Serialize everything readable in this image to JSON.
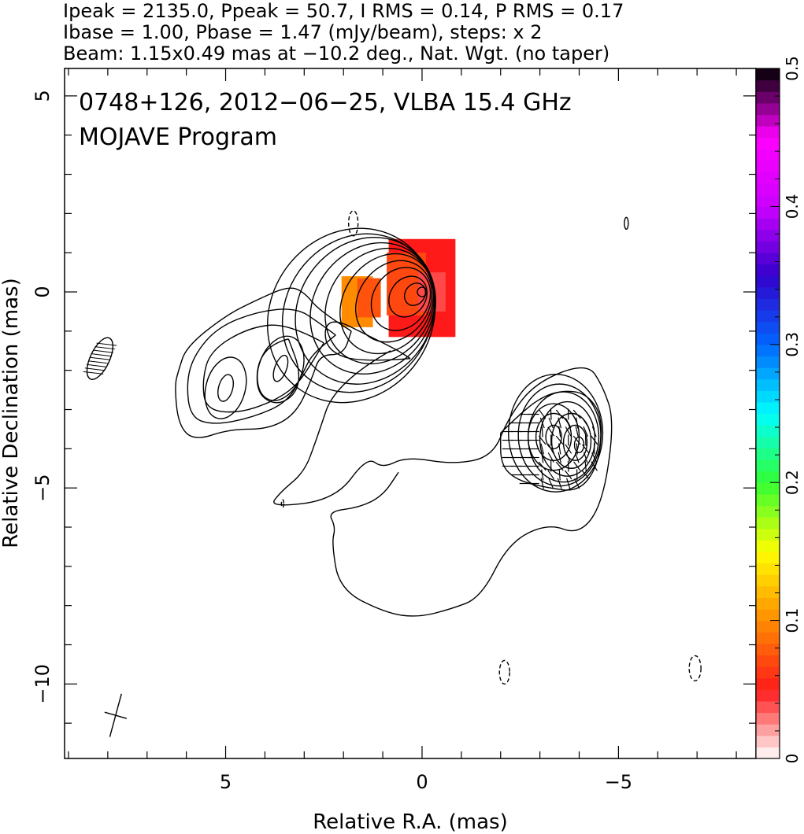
{
  "header": {
    "line1": "Ipeak = 2135.0, Ppeak = 50.7, I RMS = 0.14, P RMS = 0.17",
    "line2": "Ibase = 1.00, Pbase = 1.47 (mJy/beam), steps: x 2",
    "line3": "Beam: 1.15x0.49 mas at −10.2 deg., Nat. Wgt. (no taper)"
  },
  "chart_data": {
    "type": "heatmap",
    "title": "0748+126, 2012−06−25, VLBA 15.4 GHz",
    "subtitle": "MOJAVE Program",
    "xlabel": "Relative R.A. (mas)",
    "ylabel": "Relative Declination (mas)",
    "xlim": [
      9.1,
      -8.5
    ],
    "ylim": [
      -11.9,
      5.7
    ],
    "x_ticks": [
      5,
      0,
      -5
    ],
    "x_tick_labels": [
      "5",
      "0",
      "−5"
    ],
    "y_ticks": [
      5,
      0,
      -5,
      -10
    ],
    "y_tick_labels": [
      "5",
      "0",
      "−5",
      "−10"
    ],
    "colorbar": {
      "range": [
        0,
        0.5
      ],
      "ticks": [
        0,
        0.1,
        0.2,
        0.3,
        0.4,
        0.5
      ],
      "tick_labels": [
        "0",
        "0.1",
        "0.2",
        "0.3",
        "0.4",
        "0.5"
      ],
      "colors": [
        "#ffffff",
        "#ff1a1a",
        "#ff8c00",
        "#ffff00",
        "#33ff33",
        "#00ffff",
        "#0066ff",
        "#3300cc",
        "#cc00ff",
        "#ff00ff",
        "#000000"
      ]
    },
    "polarization_color_patches": [
      {
        "ra": 0.0,
        "dec": 0.1,
        "ra_halfwidth": 0.85,
        "dec_halfwidth": 1.25,
        "value": 0.05
      },
      {
        "ra": 0.4,
        "dec": 0.2,
        "ra_halfwidth": 0.5,
        "dec_halfwidth": 0.8,
        "value": 0.07
      },
      {
        "ra": -0.25,
        "dec": 0.0,
        "ra_halfwidth": 0.35,
        "dec_halfwidth": 0.5,
        "value": 0.04
      },
      {
        "ra": 1.65,
        "dec": -0.25,
        "ra_halfwidth": 0.4,
        "dec_halfwidth": 0.65,
        "value": 0.1
      },
      {
        "ra": 1.35,
        "dec": -0.15,
        "ra_halfwidth": 0.3,
        "dec_halfwidth": 0.5,
        "value": 0.075
      }
    ],
    "contour_sets": [
      {
        "name": "core",
        "center": [
          0.0,
          0.0
        ],
        "rx": [
          0.12,
          0.25,
          0.45,
          0.7,
          0.9,
          1.1,
          1.3,
          1.5,
          1.7,
          1.85,
          2.05
        ],
        "ry": [
          0.12,
          0.3,
          0.55,
          0.85,
          1.1,
          1.35,
          1.55,
          1.75,
          1.95,
          2.1,
          2.3
        ],
        "rotation_deg": 35,
        "center_shift_per_level": [
          0.18,
          -0.06
        ]
      },
      {
        "name": "knot-west",
        "center": [
          -4.0,
          -3.9
        ],
        "rx": [
          0.12,
          0.3,
          0.5,
          0.7,
          0.9,
          1.05,
          1.2
        ],
        "ry": [
          0.2,
          0.45,
          0.7,
          0.95,
          1.15,
          1.3,
          1.5
        ],
        "rotation_deg": 0,
        "center_shift_per_level": [
          0.1,
          0.05
        ]
      },
      {
        "name": "knot-west-2",
        "center": [
          -3.35,
          -3.7
        ],
        "rx": [
          0.2,
          0.45,
          0.65
        ],
        "ry": [
          0.3,
          0.6,
          0.85
        ],
        "rotation_deg": 0,
        "center_shift_per_level": [
          0.0,
          0.0
        ]
      },
      {
        "name": "knot-east",
        "center": [
          5.0,
          -2.45
        ],
        "rx": [
          0.18,
          0.5
        ],
        "ry": [
          0.35,
          0.8
        ],
        "rotation_deg": 15,
        "center_shift_per_level": [
          0.0,
          0.0
        ]
      },
      {
        "name": "knot-east-2",
        "center": [
          3.6,
          -1.95
        ],
        "rx": [
          0.15,
          0.55
        ],
        "ry": [
          0.35,
          0.85
        ],
        "rotation_deg": 20,
        "center_shift_per_level": [
          0.0,
          0.0
        ]
      }
    ],
    "contour_polylines": [
      {
        "dashed": false,
        "points": [
          [
            1.8,
            -1.0
          ],
          [
            2.6,
            -0.5
          ],
          [
            3.0,
            0.0
          ],
          [
            3.4,
            0.15
          ],
          [
            4.2,
            -0.2
          ],
          [
            5.0,
            -0.6
          ],
          [
            6.0,
            -1.4
          ],
          [
            6.2,
            -2.0
          ],
          [
            6.3,
            -2.4
          ],
          [
            6.2,
            -3.4
          ],
          [
            5.8,
            -3.8
          ],
          [
            4.9,
            -3.5
          ],
          [
            3.9,
            -3.5
          ],
          [
            3.2,
            -3.1
          ],
          [
            2.8,
            -2.2
          ],
          [
            2.6,
            -1.6
          ],
          [
            2.0,
            -1.6
          ],
          [
            1.8,
            -1.0
          ]
        ]
      },
      {
        "dashed": false,
        "points": [
          [
            2.2,
            -1.1
          ],
          [
            2.6,
            -0.8
          ],
          [
            3.2,
            -0.4
          ],
          [
            4.2,
            -0.5
          ],
          [
            5.2,
            -0.9
          ],
          [
            5.8,
            -1.6
          ],
          [
            6.0,
            -2.3
          ],
          [
            5.9,
            -3.2
          ],
          [
            5.3,
            -3.4
          ],
          [
            4.3,
            -3.2
          ],
          [
            3.4,
            -2.8
          ],
          [
            3.0,
            -2.0
          ],
          [
            2.8,
            -1.6
          ],
          [
            2.2,
            -1.1
          ]
        ]
      },
      {
        "dashed": false,
        "points": [
          [
            2.5,
            -1.3
          ],
          [
            3.4,
            -0.8
          ],
          [
            4.4,
            -0.9
          ],
          [
            5.4,
            -1.5
          ],
          [
            5.6,
            -2.3
          ],
          [
            5.5,
            -3.0
          ],
          [
            4.7,
            -3.1
          ],
          [
            3.8,
            -2.8
          ],
          [
            3.2,
            -2.4
          ],
          [
            2.8,
            -1.8
          ],
          [
            2.5,
            -1.3
          ]
        ]
      },
      {
        "dashed": false,
        "points": [
          [
            3.4,
            -1.2
          ],
          [
            3.8,
            -1.3
          ],
          [
            4.2,
            -1.8
          ],
          [
            4.2,
            -2.6
          ],
          [
            3.7,
            -2.9
          ],
          [
            3.2,
            -2.6
          ],
          [
            3.1,
            -2.0
          ],
          [
            3.4,
            -1.2
          ]
        ]
      },
      {
        "dashed": false,
        "points": [
          [
            0.8,
            -1.5
          ],
          [
            2.2,
            -2.3
          ],
          [
            2.7,
            -3.8
          ],
          [
            3.0,
            -4.6
          ],
          [
            3.6,
            -5.1
          ],
          [
            3.9,
            -5.5
          ],
          [
            2.2,
            -5.3
          ],
          [
            1.4,
            -4.2
          ],
          [
            1.0,
            -4.5
          ],
          [
            0.4,
            -4.2
          ],
          [
            -0.8,
            -4.4
          ],
          [
            -1.8,
            -4.2
          ],
          [
            -2.2,
            -3.2
          ],
          [
            -2.9,
            -2.3
          ],
          [
            -4.2,
            -1.8
          ],
          [
            -4.6,
            -2.4
          ],
          [
            -4.9,
            -3.3
          ],
          [
            -4.6,
            -5.4
          ],
          [
            -4.0,
            -6.2
          ],
          [
            -3.2,
            -5.9
          ],
          [
            -2.2,
            -6.4
          ],
          [
            -1.5,
            -7.8
          ],
          [
            -0.7,
            -8.1
          ],
          [
            0.1,
            -8.3
          ],
          [
            0.9,
            -8.2
          ],
          [
            2.1,
            -7.6
          ],
          [
            2.3,
            -6.4
          ],
          [
            2.2,
            -6.0
          ],
          [
            2.4,
            -5.6
          ],
          [
            1.6,
            -5.5
          ],
          [
            1.0,
            -5.2
          ],
          [
            0.6,
            -4.6
          ]
        ]
      },
      {
        "dashed": false,
        "points": [
          [
            -2.0,
            -3.6
          ],
          [
            -2.4,
            -3.2
          ],
          [
            -3.0,
            -2.7
          ],
          [
            -3.6,
            -2.5
          ],
          [
            -4.2,
            -2.6
          ],
          [
            -4.6,
            -3.2
          ],
          [
            -4.5,
            -4.4
          ],
          [
            -4.0,
            -5.1
          ],
          [
            -3.2,
            -5.0
          ],
          [
            -2.4,
            -4.8
          ],
          [
            -2.0,
            -4.4
          ],
          [
            -2.0,
            -3.6
          ]
        ]
      },
      {
        "dashed": false,
        "points": [
          [
            0.3,
            -1.7
          ],
          [
            1.6,
            -1.8
          ],
          [
            2.4,
            -1.5
          ],
          [
            2.5,
            -0.9
          ],
          [
            2.2,
            -0.7
          ],
          [
            1.4,
            -1.1
          ],
          [
            0.6,
            -1.5
          ],
          [
            0.3,
            -1.7
          ]
        ]
      }
    ],
    "dashed_contours": [
      {
        "ra": 1.75,
        "dec": 1.75,
        "rx": 0.12,
        "ry": 0.32
      },
      {
        "ra": -2.1,
        "dec": -9.7,
        "rx": 0.13,
        "ry": 0.3
      },
      {
        "ra": -6.95,
        "dec": -9.6,
        "rx": 0.15,
        "ry": 0.32
      },
      {
        "ra": 3.55,
        "dec": -5.4,
        "rx": 0.03,
        "ry": 0.1
      }
    ],
    "solid_small_contours": [
      {
        "ra": -5.2,
        "dec": 1.75,
        "rx": 0.05,
        "ry": 0.15
      }
    ],
    "evpa_sticks_region": {
      "ra_range": [
        -2.1,
        -4.4
      ],
      "dec_range": [
        -3.0,
        -5.0
      ]
    },
    "beam": {
      "ra": 8.2,
      "dec": -1.7,
      "major_mas": 1.15,
      "minor_mas": 0.49,
      "pa_deg": -10.2
    },
    "polarization_scale_bar": {
      "ra": 7.8,
      "dec": -10.8,
      "length_mas": 1.1,
      "pa_deg": -10.2
    }
  }
}
